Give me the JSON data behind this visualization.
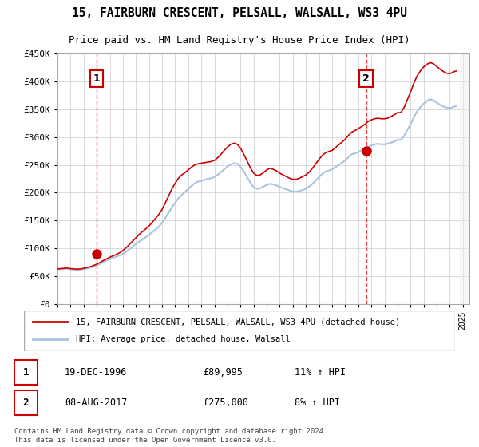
{
  "title_line1": "15, FAIRBURN CRESCENT, PELSALL, WALSALL, WS3 4PU",
  "title_line2": "Price paid vs. HM Land Registry's House Price Index (HPI)",
  "ylabel": "",
  "xlabel": "",
  "ylim": [
    0,
    450000
  ],
  "yticks": [
    0,
    50000,
    100000,
    150000,
    200000,
    250000,
    300000,
    350000,
    400000,
    450000
  ],
  "ytick_labels": [
    "£0",
    "£50K",
    "£100K",
    "£150K",
    "£200K",
    "£250K",
    "£300K",
    "£350K",
    "£400K",
    "£450K"
  ],
  "sale1_date_num": 1996.97,
  "sale1_price": 89995,
  "sale1_label": "1",
  "sale2_date_num": 2017.6,
  "sale2_price": 275000,
  "sale2_label": "2",
  "legend_line1": "15, FAIRBURN CRESCENT, PELSALL, WALSALL, WS3 4PU (detached house)",
  "legend_line2": "HPI: Average price, detached house, Walsall",
  "table_row1": [
    "1",
    "19-DEC-1996",
    "£89,995",
    "11% ↑ HPI"
  ],
  "table_row2": [
    "2",
    "08-AUG-2017",
    "£275,000",
    "8% ↑ HPI"
  ],
  "footer": "Contains HM Land Registry data © Crown copyright and database right 2024.\nThis data is licensed under the Open Government Licence v3.0.",
  "hpi_color": "#aac4e0",
  "price_color": "#cc0000",
  "sale_marker_color": "#cc0000",
  "background_hatch_color": "#e8e8e8",
  "grid_color": "#cccccc",
  "dashed_line_color": "#cc0000",
  "hpi_data": [
    [
      1994.0,
      62000
    ],
    [
      1994.25,
      62500
    ],
    [
      1994.5,
      63000
    ],
    [
      1994.75,
      63500
    ],
    [
      1995.0,
      62000
    ],
    [
      1995.25,
      61500
    ],
    [
      1995.5,
      61000
    ],
    [
      1995.75,
      61500
    ],
    [
      1996.0,
      62500
    ],
    [
      1996.25,
      63500
    ],
    [
      1996.5,
      65000
    ],
    [
      1996.75,
      67000
    ],
    [
      1997.0,
      69000
    ],
    [
      1997.25,
      72000
    ],
    [
      1997.5,
      75000
    ],
    [
      1997.75,
      78000
    ],
    [
      1998.0,
      81000
    ],
    [
      1998.25,
      83000
    ],
    [
      1998.5,
      85000
    ],
    [
      1998.75,
      87000
    ],
    [
      1999.0,
      90000
    ],
    [
      1999.25,
      94000
    ],
    [
      1999.5,
      98000
    ],
    [
      1999.75,
      103000
    ],
    [
      2000.0,
      108000
    ],
    [
      2000.25,
      112000
    ],
    [
      2000.5,
      116000
    ],
    [
      2000.75,
      120000
    ],
    [
      2001.0,
      124000
    ],
    [
      2001.25,
      129000
    ],
    [
      2001.5,
      134000
    ],
    [
      2001.75,
      139000
    ],
    [
      2002.0,
      146000
    ],
    [
      2002.25,
      155000
    ],
    [
      2002.5,
      164000
    ],
    [
      2002.75,
      174000
    ],
    [
      2003.0,
      182000
    ],
    [
      2003.25,
      190000
    ],
    [
      2003.5,
      196000
    ],
    [
      2003.75,
      201000
    ],
    [
      2004.0,
      207000
    ],
    [
      2004.25,
      212000
    ],
    [
      2004.5,
      217000
    ],
    [
      2004.75,
      220000
    ],
    [
      2005.0,
      221000
    ],
    [
      2005.25,
      223000
    ],
    [
      2005.5,
      225000
    ],
    [
      2005.75,
      226000
    ],
    [
      2006.0,
      228000
    ],
    [
      2006.25,
      232000
    ],
    [
      2006.5,
      237000
    ],
    [
      2006.75,
      242000
    ],
    [
      2007.0,
      247000
    ],
    [
      2007.25,
      251000
    ],
    [
      2007.5,
      253000
    ],
    [
      2007.75,
      252000
    ],
    [
      2008.0,
      247000
    ],
    [
      2008.25,
      238000
    ],
    [
      2008.5,
      228000
    ],
    [
      2008.75,
      218000
    ],
    [
      2009.0,
      210000
    ],
    [
      2009.25,
      207000
    ],
    [
      2009.5,
      208000
    ],
    [
      2009.75,
      211000
    ],
    [
      2010.0,
      214000
    ],
    [
      2010.25,
      216000
    ],
    [
      2010.5,
      215000
    ],
    [
      2010.75,
      213000
    ],
    [
      2011.0,
      210000
    ],
    [
      2011.25,
      208000
    ],
    [
      2011.5,
      206000
    ],
    [
      2011.75,
      204000
    ],
    [
      2012.0,
      202000
    ],
    [
      2012.25,
      202000
    ],
    [
      2012.5,
      203000
    ],
    [
      2012.75,
      205000
    ],
    [
      2013.0,
      207000
    ],
    [
      2013.25,
      211000
    ],
    [
      2013.5,
      216000
    ],
    [
      2013.75,
      222000
    ],
    [
      2014.0,
      228000
    ],
    [
      2014.25,
      234000
    ],
    [
      2014.5,
      238000
    ],
    [
      2014.75,
      240000
    ],
    [
      2015.0,
      242000
    ],
    [
      2015.25,
      246000
    ],
    [
      2015.5,
      250000
    ],
    [
      2015.75,
      254000
    ],
    [
      2016.0,
      258000
    ],
    [
      2016.25,
      264000
    ],
    [
      2016.5,
      269000
    ],
    [
      2016.75,
      271000
    ],
    [
      2017.0,
      273000
    ],
    [
      2017.25,
      276000
    ],
    [
      2017.5,
      279000
    ],
    [
      2017.75,
      282000
    ],
    [
      2018.0,
      285000
    ],
    [
      2018.25,
      287000
    ],
    [
      2018.5,
      288000
    ],
    [
      2018.75,
      287000
    ],
    [
      2019.0,
      287000
    ],
    [
      2019.25,
      288000
    ],
    [
      2019.5,
      290000
    ],
    [
      2019.75,
      292000
    ],
    [
      2020.0,
      295000
    ],
    [
      2020.25,
      295000
    ],
    [
      2020.5,
      302000
    ],
    [
      2020.75,
      313000
    ],
    [
      2021.0,
      323000
    ],
    [
      2021.25,
      336000
    ],
    [
      2021.5,
      346000
    ],
    [
      2021.75,
      354000
    ],
    [
      2022.0,
      360000
    ],
    [
      2022.25,
      365000
    ],
    [
      2022.5,
      368000
    ],
    [
      2022.75,
      366000
    ],
    [
      2023.0,
      362000
    ],
    [
      2023.25,
      358000
    ],
    [
      2023.5,
      355000
    ],
    [
      2023.75,
      353000
    ],
    [
      2024.0,
      352000
    ],
    [
      2024.25,
      354000
    ],
    [
      2024.5,
      356000
    ]
  ],
  "hpi_red_data": [
    [
      1994.0,
      63000
    ],
    [
      1994.25,
      63500
    ],
    [
      1994.5,
      64000
    ],
    [
      1994.75,
      64500
    ],
    [
      1995.0,
      63500
    ],
    [
      1995.25,
      63000
    ],
    [
      1995.5,
      62500
    ],
    [
      1995.75,
      63000
    ],
    [
      1996.0,
      64000
    ],
    [
      1996.25,
      65500
    ],
    [
      1996.5,
      67000
    ],
    [
      1996.75,
      69000
    ],
    [
      1997.0,
      71500
    ],
    [
      1997.25,
      74500
    ],
    [
      1997.5,
      78000
    ],
    [
      1997.75,
      81000
    ],
    [
      1998.0,
      84000
    ],
    [
      1998.25,
      86500
    ],
    [
      1998.5,
      89000
    ],
    [
      1998.75,
      92000
    ],
    [
      1999.0,
      96000
    ],
    [
      1999.25,
      101000
    ],
    [
      1999.5,
      107000
    ],
    [
      1999.75,
      113000
    ],
    [
      2000.0,
      119000
    ],
    [
      2000.25,
      125000
    ],
    [
      2000.5,
      130000
    ],
    [
      2000.75,
      135000
    ],
    [
      2001.0,
      140000
    ],
    [
      2001.25,
      147000
    ],
    [
      2001.5,
      154000
    ],
    [
      2001.75,
      161000
    ],
    [
      2002.0,
      170000
    ],
    [
      2002.25,
      182000
    ],
    [
      2002.5,
      194000
    ],
    [
      2002.75,
      207000
    ],
    [
      2003.0,
      217000
    ],
    [
      2003.25,
      226000
    ],
    [
      2003.5,
      232000
    ],
    [
      2003.75,
      236000
    ],
    [
      2004.0,
      241000
    ],
    [
      2004.25,
      246000
    ],
    [
      2004.5,
      250000
    ],
    [
      2004.75,
      252000
    ],
    [
      2005.0,
      253000
    ],
    [
      2005.25,
      254000
    ],
    [
      2005.5,
      255000
    ],
    [
      2005.75,
      256000
    ],
    [
      2006.0,
      258000
    ],
    [
      2006.25,
      263000
    ],
    [
      2006.5,
      269000
    ],
    [
      2006.75,
      276000
    ],
    [
      2007.0,
      282000
    ],
    [
      2007.25,
      287000
    ],
    [
      2007.5,
      289000
    ],
    [
      2007.75,
      287000
    ],
    [
      2008.0,
      280000
    ],
    [
      2008.25,
      269000
    ],
    [
      2008.5,
      257000
    ],
    [
      2008.75,
      245000
    ],
    [
      2009.0,
      235000
    ],
    [
      2009.25,
      231000
    ],
    [
      2009.5,
      232000
    ],
    [
      2009.75,
      236000
    ],
    [
      2010.0,
      241000
    ],
    [
      2010.25,
      244000
    ],
    [
      2010.5,
      242000
    ],
    [
      2010.75,
      239000
    ],
    [
      2011.0,
      235000
    ],
    [
      2011.25,
      232000
    ],
    [
      2011.5,
      229000
    ],
    [
      2011.75,
      226000
    ],
    [
      2012.0,
      224000
    ],
    [
      2012.25,
      224000
    ],
    [
      2012.5,
      226000
    ],
    [
      2012.75,
      229000
    ],
    [
      2013.0,
      232000
    ],
    [
      2013.25,
      237000
    ],
    [
      2013.5,
      244000
    ],
    [
      2013.75,
      252000
    ],
    [
      2014.0,
      260000
    ],
    [
      2014.25,
      267000
    ],
    [
      2014.5,
      272000
    ],
    [
      2014.75,
      274000
    ],
    [
      2015.0,
      276000
    ],
    [
      2015.25,
      281000
    ],
    [
      2015.5,
      286000
    ],
    [
      2015.75,
      291000
    ],
    [
      2016.0,
      296000
    ],
    [
      2016.25,
      303000
    ],
    [
      2016.5,
      309000
    ],
    [
      2016.75,
      312000
    ],
    [
      2017.0,
      315000
    ],
    [
      2017.25,
      319000
    ],
    [
      2017.5,
      323000
    ],
    [
      2017.75,
      328000
    ],
    [
      2018.0,
      331000
    ],
    [
      2018.25,
      333000
    ],
    [
      2018.5,
      334000
    ],
    [
      2018.75,
      333000
    ],
    [
      2019.0,
      333000
    ],
    [
      2019.25,
      334000
    ],
    [
      2019.5,
      337000
    ],
    [
      2019.75,
      340000
    ],
    [
      2020.0,
      344000
    ],
    [
      2020.25,
      344000
    ],
    [
      2020.5,
      353000
    ],
    [
      2020.75,
      367000
    ],
    [
      2021.0,
      381000
    ],
    [
      2021.25,
      397000
    ],
    [
      2021.5,
      410000
    ],
    [
      2021.75,
      419000
    ],
    [
      2022.0,
      426000
    ],
    [
      2022.25,
      431000
    ],
    [
      2022.5,
      434000
    ],
    [
      2022.75,
      432000
    ],
    [
      2023.0,
      427000
    ],
    [
      2023.25,
      422000
    ],
    [
      2023.5,
      418000
    ],
    [
      2023.75,
      415000
    ],
    [
      2024.0,
      414000
    ],
    [
      2024.25,
      417000
    ],
    [
      2024.5,
      419000
    ]
  ],
  "xmin": 1994.0,
  "xmax": 2025.5,
  "xtick_years": [
    1994,
    1995,
    1996,
    1997,
    1998,
    1999,
    2000,
    2001,
    2002,
    2003,
    2004,
    2005,
    2006,
    2007,
    2008,
    2009,
    2010,
    2011,
    2012,
    2013,
    2014,
    2015,
    2016,
    2017,
    2018,
    2019,
    2020,
    2021,
    2022,
    2023,
    2024,
    2025
  ]
}
